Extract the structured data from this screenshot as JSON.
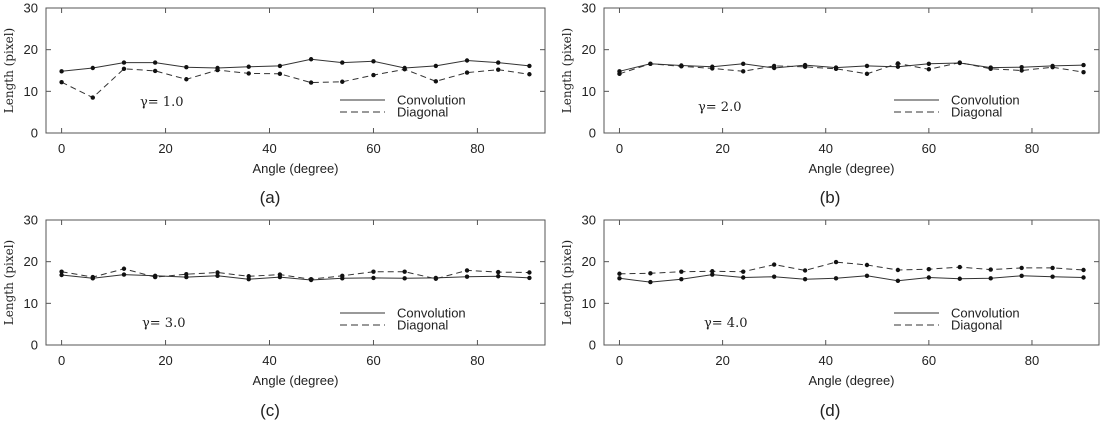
{
  "chart_data": [
    {
      "type": "line",
      "caption": "(a)",
      "annotation": "γ= 1.0",
      "xlabel": "Angle (degree)",
      "ylabel": "Length (pixel)",
      "xlim": [
        -3,
        93
      ],
      "ylim": [
        0,
        30
      ],
      "xticks": [
        0,
        20,
        40,
        60,
        80
      ],
      "yticks": [
        0,
        10,
        20,
        30
      ],
      "grid": false,
      "legend": "lower-right",
      "series": [
        {
          "name": "Convolution",
          "style": "solid",
          "x": [
            0,
            6,
            12,
            18,
            24,
            30,
            36,
            42,
            48,
            54,
            60,
            66,
            72,
            78,
            84,
            90
          ],
          "values": [
            14.8,
            15.6,
            16.9,
            16.9,
            15.8,
            15.6,
            15.9,
            16.1,
            17.7,
            16.9,
            17.2,
            15.6,
            16.1,
            17.4,
            16.9,
            16.1
          ]
        },
        {
          "name": "Diagonal",
          "style": "dashed",
          "x": [
            0,
            6,
            12,
            18,
            24,
            30,
            36,
            42,
            48,
            54,
            60,
            66,
            72,
            78,
            84,
            90
          ],
          "values": [
            12.2,
            8.5,
            15.4,
            14.9,
            12.9,
            15.1,
            14.3,
            14.2,
            12.1,
            12.3,
            13.9,
            15.3,
            12.4,
            14.5,
            15.2,
            14.1
          ]
        }
      ]
    },
    {
      "type": "line",
      "caption": "(b)",
      "annotation": "γ= 2.0",
      "xlabel": "Angle (degree)",
      "ylabel": "Length (pixel)",
      "xlim": [
        -3,
        93
      ],
      "ylim": [
        0,
        30
      ],
      "xticks": [
        0,
        20,
        40,
        60,
        80
      ],
      "yticks": [
        0,
        10,
        20,
        30
      ],
      "grid": false,
      "legend": "lower-right",
      "series": [
        {
          "name": "Convolution",
          "style": "solid",
          "x": [
            0,
            6,
            12,
            18,
            24,
            30,
            36,
            42,
            48,
            54,
            60,
            66,
            72,
            78,
            84,
            90
          ],
          "values": [
            14.8,
            16.6,
            16.2,
            15.9,
            16.6,
            15.6,
            16.3,
            15.7,
            16.1,
            15.9,
            16.6,
            16.8,
            15.7,
            15.8,
            16.1,
            16.3
          ]
        },
        {
          "name": "Diagonal",
          "style": "dashed",
          "x": [
            0,
            6,
            12,
            18,
            24,
            30,
            36,
            42,
            48,
            54,
            60,
            66,
            72,
            78,
            84,
            90
          ],
          "values": [
            14.2,
            16.6,
            16.0,
            15.5,
            14.8,
            16.1,
            15.9,
            15.4,
            14.2,
            16.7,
            15.3,
            16.9,
            15.4,
            15.0,
            15.8,
            14.6
          ]
        }
      ]
    },
    {
      "type": "line",
      "caption": "(c)",
      "annotation": "γ= 3.0",
      "xlabel": "Angle (degree)",
      "ylabel": "Length (pixel)",
      "xlim": [
        -3,
        93
      ],
      "ylim": [
        0,
        30
      ],
      "xticks": [
        0,
        20,
        40,
        60,
        80
      ],
      "yticks": [
        0,
        10,
        20,
        30
      ],
      "grid": false,
      "legend": "lower-right",
      "series": [
        {
          "name": "Convolution",
          "style": "solid",
          "x": [
            0,
            6,
            12,
            18,
            24,
            30,
            36,
            42,
            48,
            54,
            60,
            66,
            72,
            78,
            84,
            90
          ],
          "values": [
            16.8,
            16.0,
            16.9,
            16.6,
            16.3,
            16.6,
            15.8,
            16.3,
            15.6,
            16.0,
            16.1,
            16.0,
            16.1,
            16.4,
            16.5,
            16.1
          ]
        },
        {
          "name": "Diagonal",
          "style": "dashed",
          "x": [
            0,
            6,
            12,
            18,
            24,
            30,
            36,
            42,
            48,
            54,
            60,
            66,
            72,
            78,
            84,
            90
          ],
          "values": [
            17.6,
            16.3,
            18.3,
            16.3,
            17.0,
            17.4,
            16.5,
            16.9,
            15.8,
            16.6,
            17.6,
            17.6,
            15.9,
            17.9,
            17.5,
            17.4
          ]
        }
      ]
    },
    {
      "type": "line",
      "caption": "(d)",
      "annotation": "γ= 4.0",
      "xlabel": "Angle (degree)",
      "ylabel": "Length (pixel)",
      "xlim": [
        -3,
        93
      ],
      "ylim": [
        0,
        30
      ],
      "xticks": [
        0,
        20,
        40,
        60,
        80
      ],
      "yticks": [
        0,
        10,
        20,
        30
      ],
      "grid": false,
      "legend": "lower-right",
      "series": [
        {
          "name": "Convolution",
          "style": "solid",
          "x": [
            0,
            6,
            12,
            18,
            24,
            30,
            36,
            42,
            48,
            54,
            60,
            66,
            72,
            78,
            84,
            90
          ],
          "values": [
            16.0,
            15.1,
            15.8,
            16.9,
            16.2,
            16.4,
            15.8,
            16.0,
            16.6,
            15.4,
            16.2,
            15.9,
            16.0,
            16.6,
            16.4,
            16.2
          ]
        },
        {
          "name": "Diagonal",
          "style": "dashed",
          "x": [
            0,
            6,
            12,
            18,
            24,
            30,
            36,
            42,
            48,
            54,
            60,
            66,
            72,
            78,
            84,
            90
          ],
          "values": [
            17.1,
            17.2,
            17.6,
            17.7,
            17.6,
            19.3,
            17.9,
            19.9,
            19.2,
            18.0,
            18.2,
            18.7,
            18.1,
            18.5,
            18.5,
            18.0
          ]
        }
      ]
    }
  ]
}
